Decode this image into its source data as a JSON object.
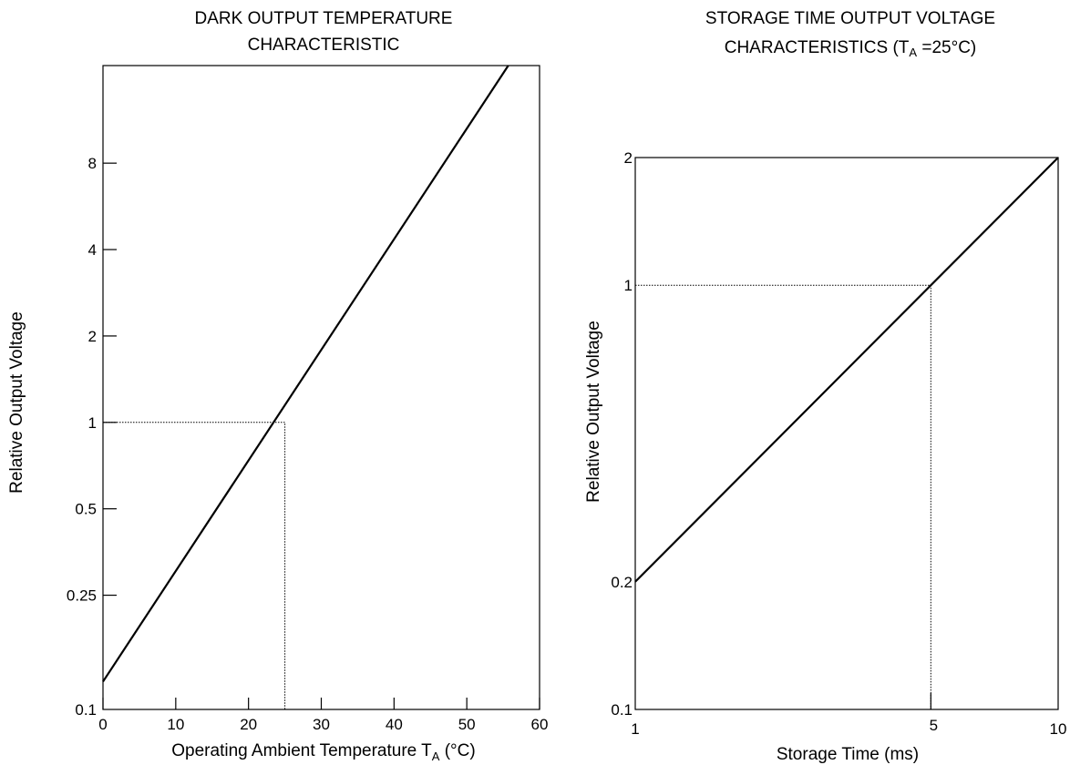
{
  "colors": {
    "background": "#ffffff",
    "ink": "#000000"
  },
  "chart_data": [
    {
      "type": "line",
      "title": "DARK OUTPUT TEMPERATURE CHARACTERISTIC",
      "title_lines": [
        "DARK OUTPUT TEMPERATURE",
        "CHARACTERISTIC"
      ],
      "xlabel": "Operating Ambient Temperature T",
      "xlabel_sub": "A",
      "xlabel_tail": " (°C)",
      "ylabel": "Relative Output Voltage",
      "x_scale": "linear",
      "y_scale": "log",
      "xlim": [
        0,
        60
      ],
      "ylim": [
        0.1,
        20
      ],
      "x_ticks": [
        0,
        10,
        20,
        30,
        40,
        50,
        60
      ],
      "x_tick_labels": [
        "0",
        "10",
        "20",
        "30",
        "40",
        "50",
        "60"
      ],
      "y_ticks": [
        0.1,
        0.25,
        0.5,
        1,
        2,
        4,
        8
      ],
      "y_tick_labels": [
        "0.1",
        "0.25",
        "0.5",
        "1",
        "2",
        "4",
        "8"
      ],
      "grid": false,
      "series": [
        {
          "x": [
            0,
            55.7
          ],
          "y": [
            0.125,
            20
          ]
        }
      ],
      "reference_point": {
        "x": 25,
        "y": 1
      }
    },
    {
      "type": "line",
      "title": "STORAGE TIME OUTPUT VOLTAGE CHARACTERISTICS (TA =25°C)",
      "title_line1": "STORAGE TIME OUTPUT VOLTAGE",
      "title_line2_pre": "CHARACTERISTICS (T",
      "title_line2_sub": "A",
      "title_line2_post": " =25°C)",
      "xlabel": "Storage Time (ms)",
      "ylabel": "Relative Output Voltage",
      "x_scale": "log",
      "y_scale": "log",
      "xlim": [
        1,
        10
      ],
      "ylim": [
        0.1,
        2
      ],
      "x_ticks": [
        1,
        5,
        10
      ],
      "x_tick_labels": [
        "1",
        "5",
        "10"
      ],
      "y_ticks": [
        0.1,
        0.2,
        1,
        2
      ],
      "y_tick_labels": [
        "0.1",
        "0.2",
        "1",
        "2"
      ],
      "grid": false,
      "series": [
        {
          "x": [
            1,
            10
          ],
          "y": [
            0.2,
            2
          ]
        }
      ],
      "reference_point": {
        "x": 5,
        "y": 1
      }
    }
  ]
}
